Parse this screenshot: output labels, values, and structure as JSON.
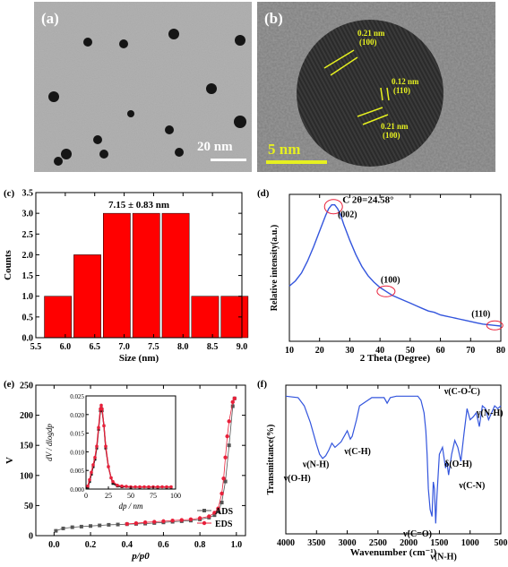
{
  "panels": {
    "a": {
      "label": "(a)",
      "scale_text": "20 nm"
    },
    "b": {
      "label": "(b)",
      "scale_text": "5 nm",
      "annotations": [
        {
          "d": "0.21 nm",
          "hkl": "(100)"
        },
        {
          "d": "0.12 nm",
          "hkl": "(110)"
        },
        {
          "d": "0.21 nm",
          "hkl": "(100)"
        }
      ]
    }
  },
  "chart_data": [
    {
      "id": "c",
      "panel_label": "(c)",
      "type": "bar",
      "title": "7.15 ± 0.83 nm",
      "xlabel": "Size (nm)",
      "ylabel": "Counts",
      "bar_color": "#ff0000",
      "xlim": [
        5.5,
        9.0
      ],
      "ylim": [
        0.0,
        3.5
      ],
      "xticks": [
        "5.5",
        "6.0",
        "6.5",
        "7.0",
        "7.5",
        "8.0",
        "8.5",
        "9.0"
      ],
      "yticks": [
        "0.0",
        "0.5",
        "1.0",
        "1.5",
        "2.0",
        "2.5",
        "3.0",
        "3.5"
      ],
      "bins": [
        {
          "center": 5.875,
          "value": 1
        },
        {
          "center": 6.375,
          "value": 2
        },
        {
          "center": 6.875,
          "value": 3
        },
        {
          "center": 7.375,
          "value": 3
        },
        {
          "center": 7.875,
          "value": 3
        },
        {
          "center": 8.375,
          "value": 1
        },
        {
          "center": 8.875,
          "value": 1
        }
      ]
    },
    {
      "id": "d",
      "panel_label": "(d)",
      "type": "line",
      "xlabel": "2 Theta (Degree)",
      "ylabel": "Relative intensity(a.u.)",
      "line_color": "#3355dd",
      "xlim": [
        10,
        80
      ],
      "xticks": [
        "10",
        "20",
        "30",
        "40",
        "50",
        "60",
        "70",
        "80"
      ],
      "x": [
        10,
        12,
        14,
        16,
        18,
        20,
        22,
        23,
        24,
        25,
        26,
        27,
        28,
        30,
        32,
        34,
        36,
        38,
        40,
        42,
        44,
        46,
        48,
        50,
        52,
        54,
        56,
        58,
        60,
        62,
        64,
        66,
        68,
        70,
        72,
        74,
        76,
        78,
        80
      ],
      "y": [
        0.38,
        0.42,
        0.48,
        0.57,
        0.68,
        0.8,
        0.92,
        0.97,
        1.0,
        1.0,
        0.97,
        0.92,
        0.85,
        0.73,
        0.62,
        0.53,
        0.46,
        0.41,
        0.37,
        0.34,
        0.31,
        0.29,
        0.27,
        0.25,
        0.23,
        0.21,
        0.19,
        0.18,
        0.16,
        0.15,
        0.14,
        0.13,
        0.12,
        0.11,
        0.1,
        0.09,
        0.085,
        0.08,
        0.075
      ],
      "annotations": [
        {
          "text": "C 2θ=24.58°",
          "x": 24.6
        },
        {
          "text": "(002)",
          "x": 26
        },
        {
          "text": "(100)",
          "x": 42
        },
        {
          "text": "(110)",
          "x": 78
        }
      ]
    },
    {
      "id": "e",
      "panel_label": "(e)",
      "type": "line",
      "xlabel": "p/p0",
      "ylabel": "V",
      "xlim": [
        -0.1,
        1.05
      ],
      "ylim": [
        0,
        250
      ],
      "xticks": [
        "0.0",
        "0.2",
        "0.4",
        "0.6",
        "0.8",
        "1.0"
      ],
      "yticks": [
        "0",
        "50",
        "100",
        "150",
        "200",
        "250"
      ],
      "series": [
        {
          "name": "ADS",
          "color": "#555555",
          "x": [
            0.01,
            0.05,
            0.1,
            0.15,
            0.2,
            0.25,
            0.3,
            0.35,
            0.4,
            0.45,
            0.5,
            0.55,
            0.6,
            0.65,
            0.7,
            0.75,
            0.8,
            0.85,
            0.88,
            0.9,
            0.92,
            0.94,
            0.96,
            0.98,
            0.99
          ],
          "y": [
            8,
            12,
            14,
            15,
            16,
            17,
            18,
            18.5,
            19,
            19.5,
            20,
            21,
            22,
            23,
            24,
            25,
            27,
            30,
            34,
            40,
            55,
            90,
            150,
            215,
            228
          ]
        },
        {
          "name": "EDS",
          "color": "#e8203a",
          "x": [
            0.99,
            0.98,
            0.96,
            0.95,
            0.94,
            0.93,
            0.92,
            0.9,
            0.88,
            0.85,
            0.8,
            0.75,
            0.7,
            0.65,
            0.6,
            0.55,
            0.5,
            0.45,
            0.4
          ],
          "y": [
            228,
            222,
            190,
            165,
            130,
            95,
            70,
            45,
            38,
            32,
            29,
            27,
            26,
            25,
            24,
            23,
            22,
            20.5,
            19.5
          ]
        }
      ],
      "inset": {
        "xlabel": "dp / nm",
        "ylabel": "dV / dlogdp",
        "xlim": [
          0,
          100
        ],
        "ylim": [
          0,
          0.025
        ],
        "xticks": [
          "0",
          "25",
          "50",
          "75",
          "100"
        ],
        "yticks": [
          "0.000",
          "0.005",
          "0.010",
          "0.015",
          "0.020",
          "0.025"
        ],
        "series": [
          {
            "name": "ADS",
            "color": "#111111",
            "x": [
              2,
              4,
              6,
              8,
              10,
              12,
              14,
              16,
              17,
              18,
              20,
              22,
              25,
              28,
              30,
              35,
              40,
              50,
              60,
              70,
              80,
              90,
              95
            ],
            "y": [
              0.0005,
              0.002,
              0.004,
              0.006,
              0.008,
              0.011,
              0.016,
              0.021,
              0.022,
              0.021,
              0.017,
              0.011,
              0.006,
              0.003,
              0.0015,
              0.0008,
              0.0006,
              0.0005,
              0.0005,
              0.0005,
              0.0005,
              0.0005,
              0.0005
            ]
          },
          {
            "name": "EDS",
            "color": "#e8203a",
            "x": [
              2,
              4,
              6,
              8,
              10,
              12,
              14,
              16,
              17,
              18,
              20,
              22,
              25,
              28,
              30,
              35,
              40,
              45,
              50,
              55,
              60,
              65,
              70,
              75,
              80,
              85,
              90,
              95
            ],
            "y": [
              0.0008,
              0.0025,
              0.0045,
              0.0065,
              0.0085,
              0.0115,
              0.0165,
              0.0215,
              0.0225,
              0.0215,
              0.017,
              0.0115,
              0.006,
              0.003,
              0.002,
              0.001,
              0.0008,
              0.0007,
              0.0006,
              0.0006,
              0.0006,
              0.0006,
              0.0006,
              0.0006,
              0.0006,
              0.0006,
              0.0006,
              0.0006
            ]
          }
        ]
      }
    },
    {
      "id": "f",
      "panel_label": "(f)",
      "type": "line",
      "xlabel": "Wavenumber (cm⁻¹)",
      "ylabel": "Transmittance(%)",
      "line_color": "#3355dd",
      "xlim": [
        4000,
        500
      ],
      "xticks": [
        "4000",
        "3500",
        "3000",
        "2500",
        "2000",
        "1500",
        "1000",
        "500"
      ],
      "x": [
        4000,
        3800,
        3700,
        3600,
        3500,
        3450,
        3400,
        3350,
        3300,
        3250,
        3200,
        3100,
        3000,
        2950,
        2920,
        2850,
        2800,
        2600,
        2400,
        2350,
        2300,
        2200,
        2000,
        1850,
        1800,
        1750,
        1720,
        1700,
        1680,
        1650,
        1620,
        1600,
        1580,
        1560,
        1540,
        1500,
        1450,
        1400,
        1380,
        1350,
        1300,
        1250,
        1200,
        1150,
        1100,
        1050,
        1000,
        950,
        900,
        850,
        800,
        750,
        700,
        650,
        600,
        550,
        500
      ],
      "y": [
        0.97,
        0.96,
        0.9,
        0.78,
        0.62,
        0.55,
        0.52,
        0.54,
        0.58,
        0.63,
        0.6,
        0.64,
        0.72,
        0.66,
        0.68,
        0.8,
        0.9,
        0.96,
        0.96,
        0.92,
        0.96,
        0.97,
        0.97,
        0.97,
        0.94,
        0.85,
        0.72,
        0.55,
        0.3,
        0.15,
        0.1,
        0.35,
        0.3,
        0.05,
        0.25,
        0.55,
        0.6,
        0.45,
        0.5,
        0.4,
        0.55,
        0.65,
        0.6,
        0.5,
        0.7,
        0.88,
        0.8,
        0.82,
        0.85,
        0.75,
        0.9,
        0.88,
        0.8,
        0.85,
        0.9,
        0.88,
        0.9
      ],
      "annotations": [
        {
          "text": "ν(C-O-C)",
          "x": 1100
        },
        {
          "text": "γ(N-H)",
          "x": 750
        },
        {
          "text": "ν(C-H)",
          "x": 2900
        },
        {
          "text": "ν(C-N)",
          "x": 1150
        },
        {
          "text": "δ(O-H)",
          "x": 1300
        },
        {
          "text": "ν(O-H)",
          "x": 3450
        },
        {
          "text": "ν(N-H)",
          "x": 3200
        },
        {
          "text": "ν(C=O)",
          "x": 1650
        },
        {
          "text": "ν(N-H)",
          "x": 1560
        }
      ]
    }
  ]
}
